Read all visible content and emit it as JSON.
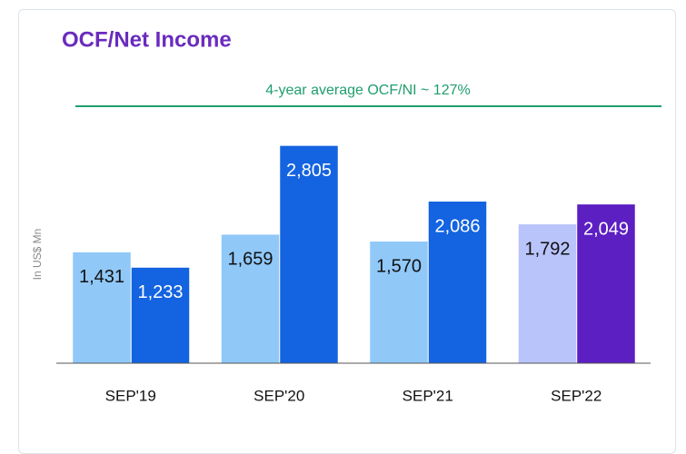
{
  "chart_data": {
    "type": "bar",
    "title": "OCF/Net Income",
    "annotation": "4-year average OCF/NI ~ 127%",
    "y_axis_label": "In US$ Mn",
    "categories": [
      "SEP'19",
      "SEP'20",
      "SEP'21",
      "SEP'22"
    ],
    "series": [
      {
        "values": [
          1431,
          1659,
          1570,
          1792
        ],
        "value_labels": [
          "1,431",
          "1,659",
          "1,570",
          "1,792"
        ],
        "colors": [
          "#90c8f8",
          "#90c8f8",
          "#90c8f8",
          "#b9c4fb"
        ]
      },
      {
        "values": [
          1233,
          2805,
          2086,
          2049
        ],
        "value_labels": [
          "1,233",
          "2,805",
          "2,086",
          "2,049"
        ],
        "colors": [
          "#1463e0",
          "#1463e0",
          "#1463e0",
          "#5c1fc2"
        ]
      }
    ],
    "ylim": [
      0,
      3000
    ],
    "grid": false
  }
}
